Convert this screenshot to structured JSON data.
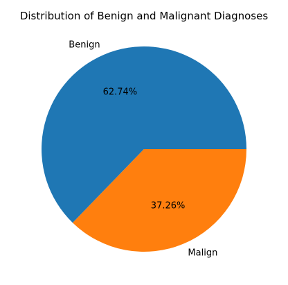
{
  "chart_data": {
    "type": "pie",
    "title": "Distribution of Benign and Malignant Diagnoses",
    "categories": [
      "Benign",
      "Malign"
    ],
    "values": [
      62.74,
      37.26
    ],
    "value_labels": [
      "62.74%",
      "37.26%"
    ],
    "colors": [
      "#1f77b4",
      "#ff7f0e"
    ],
    "start_angle_deg": 0,
    "direction": "counterclockwise"
  }
}
